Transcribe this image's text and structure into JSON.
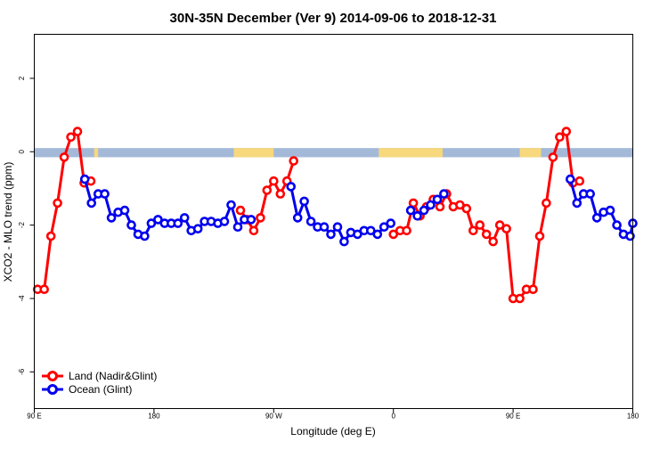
{
  "chart_data": {
    "type": "line",
    "title": "30N-35N December (Ver 9)   2014-09-06 to 2018-12-31",
    "xlabel": "Longitude (deg E)",
    "ylabel": "XCO2 - MLO trend (ppm)",
    "xlim": [
      90,
      540
    ],
    "ylim": [
      -7,
      3.2
    ],
    "x_ticks": [
      {
        "value": 90,
        "label": "90 E"
      },
      {
        "value": 180,
        "label": "180"
      },
      {
        "value": 270,
        "label": "90 W"
      },
      {
        "value": 360,
        "label": "0"
      },
      {
        "value": 450,
        "label": "90 E"
      },
      {
        "value": 540,
        "label": "180"
      }
    ],
    "y_ticks": [
      {
        "value": 2,
        "label": "2"
      },
      {
        "value": 0,
        "label": "0"
      },
      {
        "value": -2,
        "label": "-2"
      },
      {
        "value": -4,
        "label": "-4"
      },
      {
        "value": -6,
        "label": "-6"
      }
    ],
    "grid": false,
    "legend_position": "bottom-left",
    "land_sea_bar": {
      "y_range": [
        -0.15,
        0.1
      ],
      "ocean_color": "#a4b9d8",
      "land_color": "#f7d87c",
      "land_spans": [
        [
          135,
          138
        ],
        [
          240,
          270
        ],
        [
          349,
          397
        ],
        [
          455,
          471
        ]
      ]
    },
    "series": [
      {
        "name": "Land (Nadir&Glint)",
        "color": "#ff0000",
        "x": [
          92.5,
          97.5,
          102.5,
          107.5,
          112.5,
          117.5,
          122.5,
          127.5,
          132.5,
          245,
          250,
          255,
          260,
          265,
          270,
          275,
          280,
          285,
          360,
          365,
          370,
          375,
          380,
          385,
          390,
          395,
          400,
          405,
          410,
          415,
          420,
          425,
          430,
          435,
          440,
          445,
          450,
          455,
          460,
          465,
          470,
          475,
          480,
          485,
          490,
          495,
          500
        ],
        "y": [
          -3.75,
          -3.75,
          -2.3,
          -1.4,
          -0.15,
          0.4,
          0.55,
          -0.85,
          -0.8,
          -1.6,
          -1.85,
          -2.15,
          -1.8,
          -1.05,
          -0.8,
          -1.15,
          -0.8,
          -0.25,
          -2.25,
          -2.15,
          -2.15,
          -1.4,
          -1.75,
          -1.5,
          -1.3,
          -1.5,
          -1.15,
          -1.5,
          -1.45,
          -1.55,
          -2.15,
          -2.0,
          -2.25,
          -2.45,
          -2.0,
          -2.1,
          -4.0,
          -4.0,
          -3.75,
          -3.75,
          -2.3,
          -1.4,
          -0.15,
          0.4,
          0.55,
          -0.85,
          -0.8
        ]
      },
      {
        "name": "Ocean (Glint)",
        "color": "#0000ee",
        "x": [
          128,
          133,
          138,
          143,
          148,
          153,
          158,
          163,
          168,
          173,
          178,
          183,
          188,
          193,
          198,
          203,
          208,
          213,
          218,
          223,
          228,
          233,
          238,
          243,
          248,
          253,
          283,
          288,
          293,
          298,
          303,
          308,
          313,
          318,
          323,
          328,
          333,
          338,
          343,
          348,
          353,
          358,
          373,
          378,
          383,
          388,
          393,
          398,
          493,
          498,
          503,
          508,
          513,
          518,
          523,
          528,
          533,
          538,
          540
        ],
        "y": [
          -0.75,
          -1.4,
          -1.15,
          -1.15,
          -1.8,
          -1.65,
          -1.6,
          -2.0,
          -2.25,
          -2.3,
          -1.95,
          -1.85,
          -1.95,
          -1.95,
          -1.95,
          -1.8,
          -2.15,
          -2.1,
          -1.9,
          -1.9,
          -1.95,
          -1.9,
          -1.45,
          -2.05,
          -1.85,
          -1.85,
          -0.95,
          -1.8,
          -1.35,
          -1.9,
          -2.05,
          -2.05,
          -2.25,
          -2.05,
          -2.45,
          -2.2,
          -2.25,
          -2.15,
          -2.15,
          -2.25,
          -2.05,
          -1.95,
          -1.6,
          -1.75,
          -1.6,
          -1.45,
          -1.3,
          -1.15,
          -0.75,
          -1.4,
          -1.15,
          -1.15,
          -1.8,
          -1.65,
          -1.6,
          -2.0,
          -2.25,
          -2.3,
          -1.95
        ]
      }
    ]
  }
}
